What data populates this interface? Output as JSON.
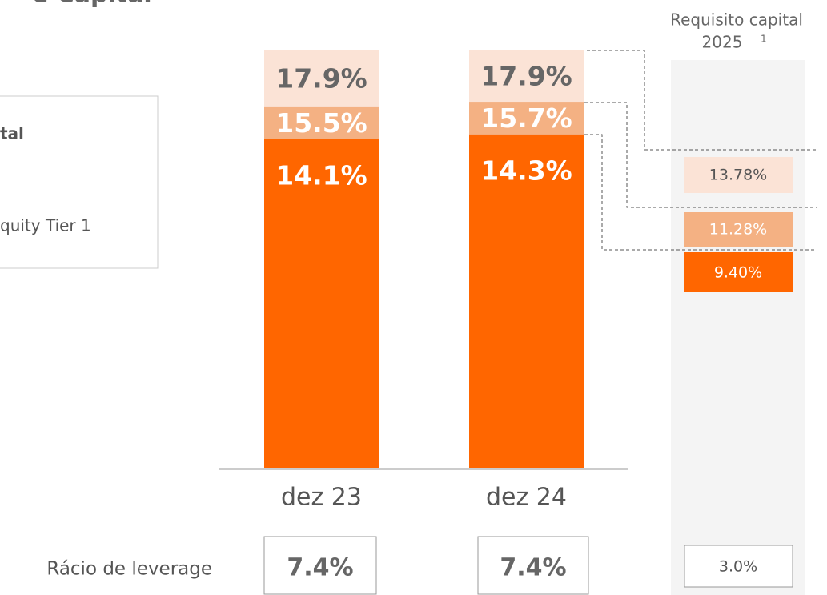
{
  "title": "e Capital",
  "legend_text": [
    "tal",
    "quity Tier 1"
  ],
  "chart_data": {
    "type": "overlap-bar",
    "categories": [
      "dez 23",
      "dez 24"
    ],
    "series": [
      {
        "color": "#fbe3d6",
        "values": [
          17.9,
          17.9
        ],
        "value_labels": [
          "17.9%",
          "17.9%"
        ]
      },
      {
        "color": "#f4b183",
        "values": [
          15.5,
          15.7
        ],
        "value_labels": [
          "15.5%",
          "15.7%"
        ]
      },
      {
        "color": "#ff6600",
        "values": [
          14.1,
          14.3
        ],
        "value_labels": [
          "14.1%",
          "14.3%"
        ]
      }
    ],
    "ylim": [
      0,
      18
    ]
  },
  "requirements": {
    "title": "Requisito capital",
    "year": "2025",
    "note": "1",
    "labels": [
      "13.78%",
      "11.28%",
      "9.40%"
    ]
  },
  "leverage": {
    "label": "Rácio de leverage",
    "labels": [
      "7.4%",
      "7.4%"
    ],
    "requirement": "3.0%"
  }
}
